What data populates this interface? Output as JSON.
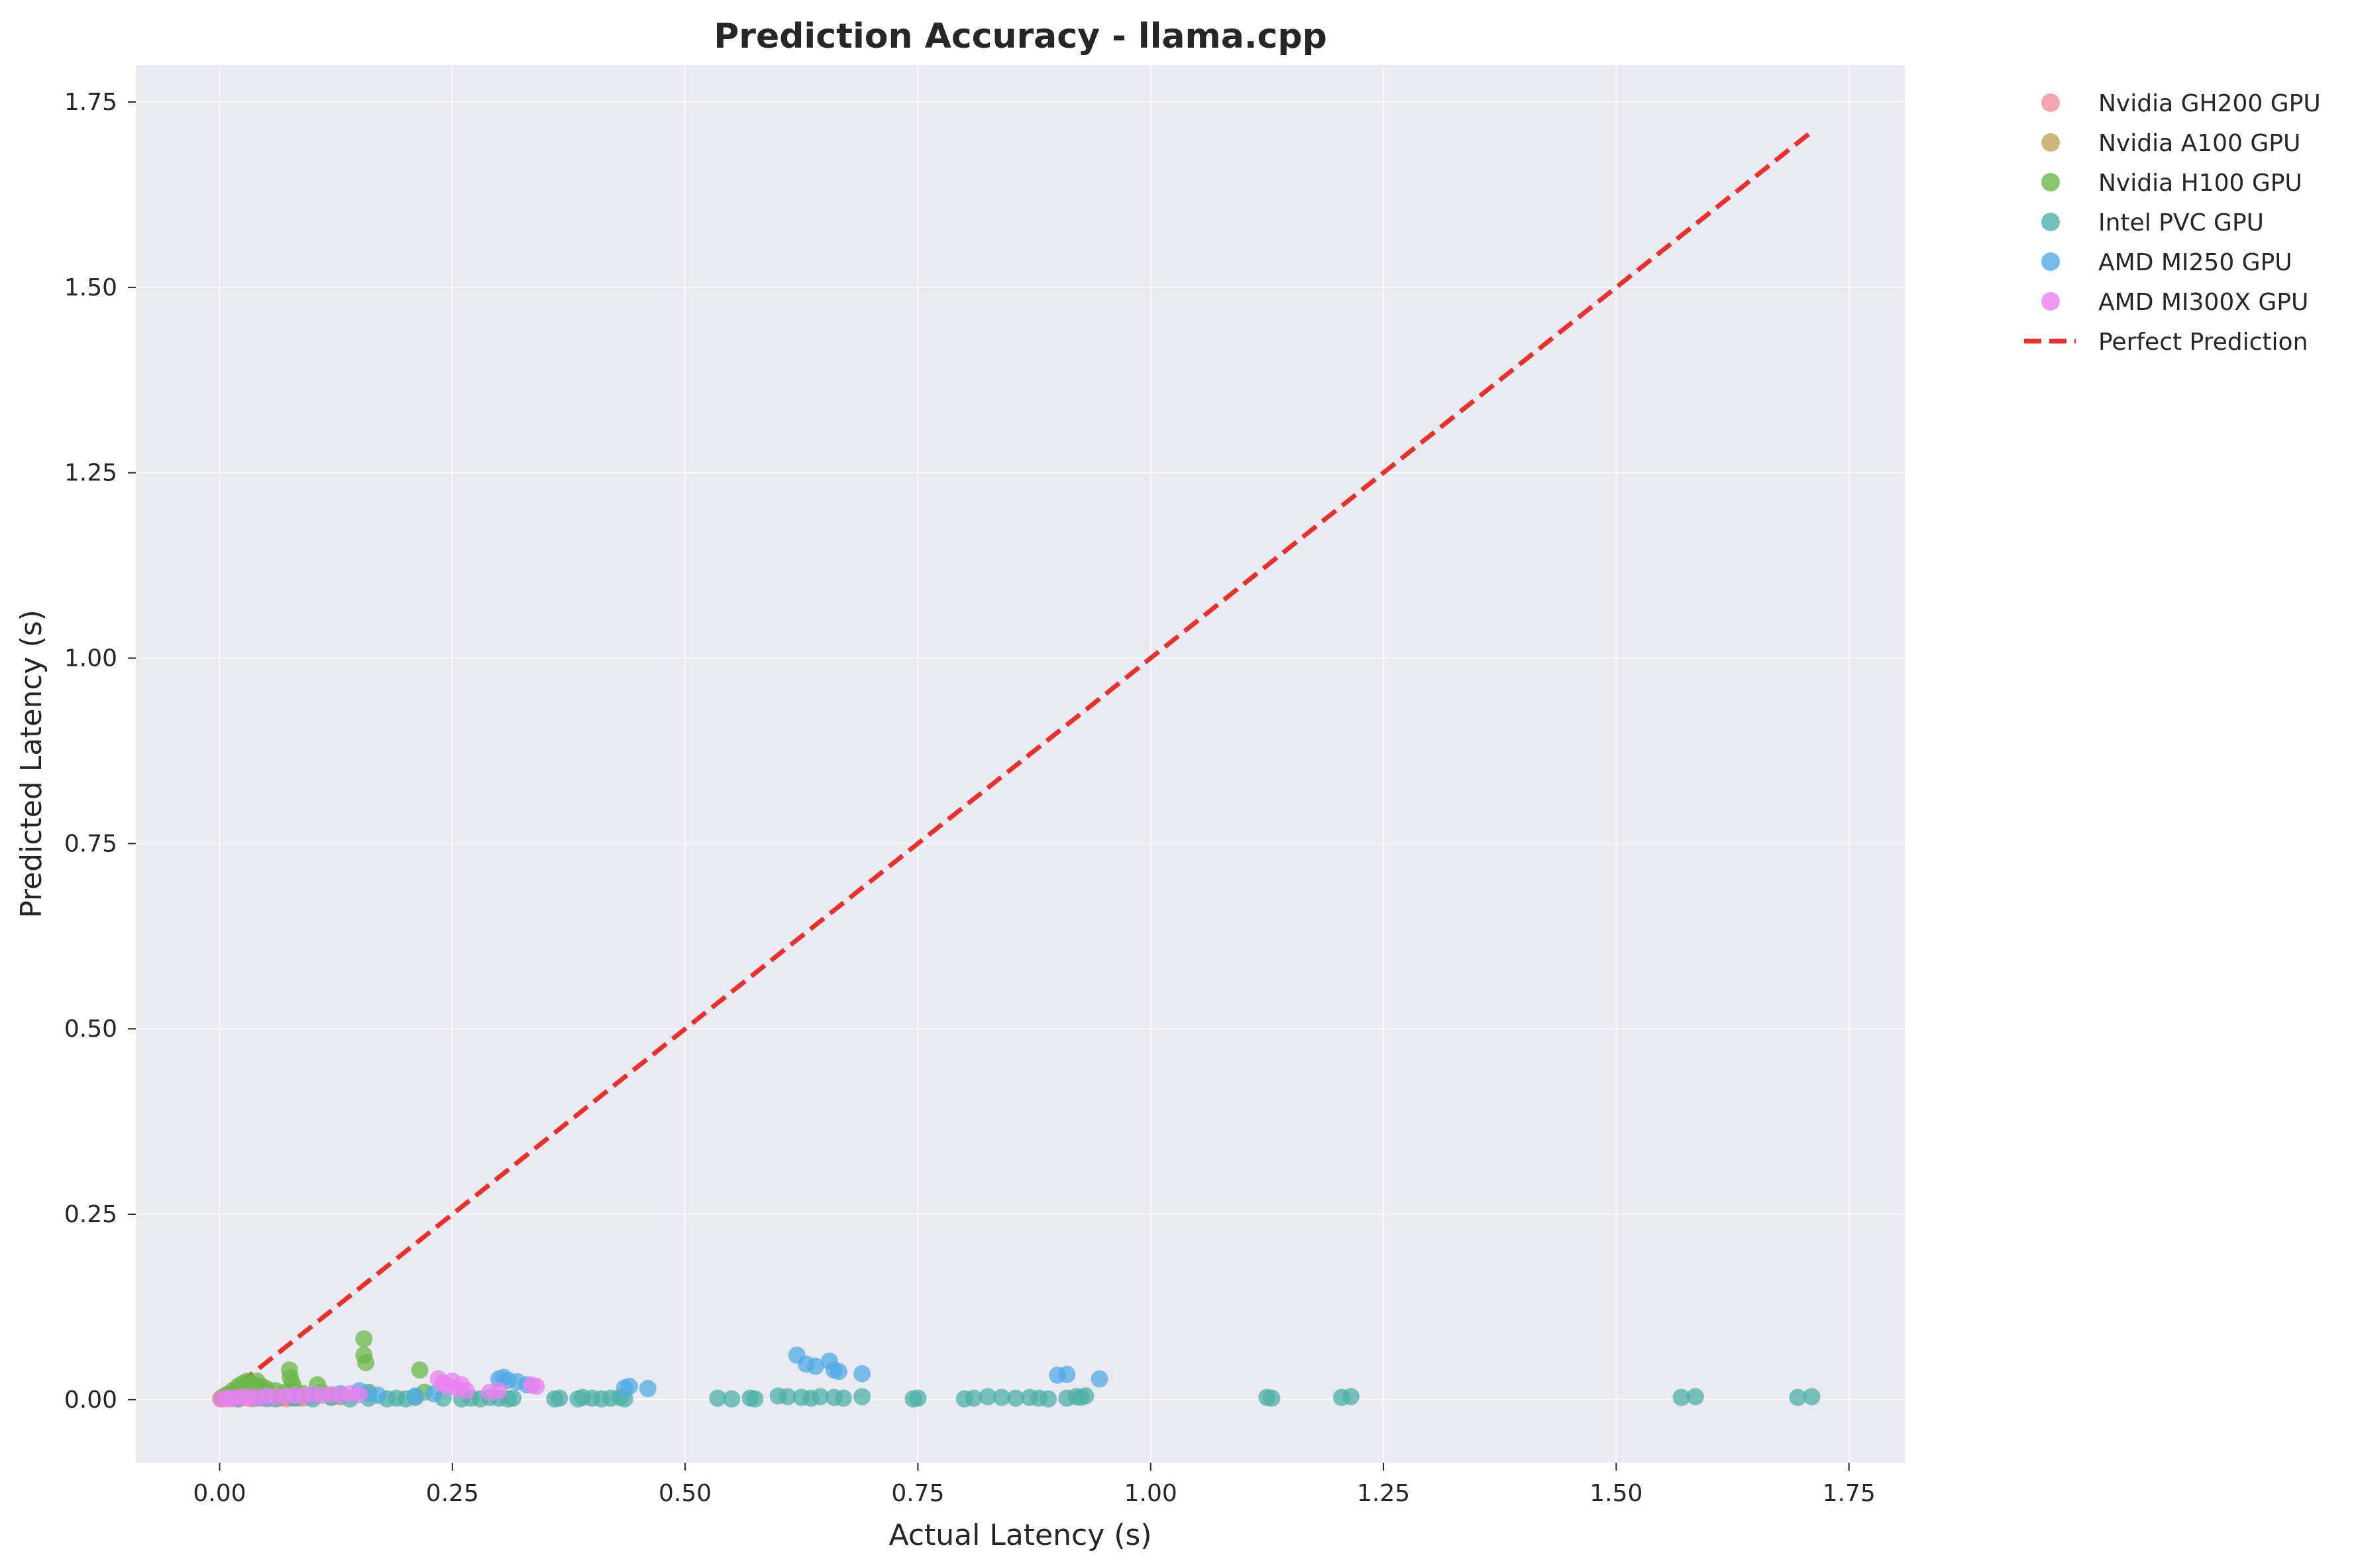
{
  "chart_data": {
    "type": "scatter",
    "title": "Prediction Accuracy - llama.cpp",
    "xlabel": "Actual Latency (s)",
    "ylabel": "Predicted Latency (s)",
    "xlim": [
      -0.09,
      1.81
    ],
    "ylim": [
      -0.085,
      1.8
    ],
    "xticks": [
      0.0,
      0.25,
      0.5,
      0.75,
      1.0,
      1.25,
      1.5,
      1.75
    ],
    "xtick_labels": [
      "0.00",
      "0.25",
      "0.50",
      "0.75",
      "1.00",
      "1.25",
      "1.50",
      "1.75"
    ],
    "yticks": [
      0.0,
      0.25,
      0.5,
      0.75,
      1.0,
      1.25,
      1.5,
      1.75
    ],
    "ytick_labels": [
      "0.00",
      "0.25",
      "0.50",
      "0.75",
      "1.00",
      "1.25",
      "1.50",
      "1.75"
    ],
    "grid": true,
    "legend_position": "outside-top-right",
    "background_color": "#eaeaf2",
    "series": [
      {
        "name": "Nvidia GH200 GPU",
        "color": "#f38ba0",
        "points": [
          [
            0.001,
            0.001
          ],
          [
            0.003,
            0.002
          ],
          [
            0.006,
            0.001
          ],
          [
            0.009,
            0.003
          ],
          [
            0.012,
            0.001
          ],
          [
            0.016,
            0.002
          ],
          [
            0.02,
            0.001
          ],
          [
            0.025,
            0.003
          ],
          [
            0.03,
            0.002
          ],
          [
            0.035,
            0.001
          ],
          [
            0.04,
            0.004
          ],
          [
            0.046,
            0.002
          ],
          [
            0.052,
            0.001
          ],
          [
            0.058,
            0.003
          ],
          [
            0.065,
            0.002
          ],
          [
            0.072,
            0.001
          ],
          [
            0.08,
            0.003
          ],
          [
            0.09,
            0.002
          ]
        ]
      },
      {
        "name": "Nvidia A100 GPU",
        "color": "#c0a45b",
        "points": [
          [
            0.002,
            0.002
          ],
          [
            0.005,
            0.004
          ],
          [
            0.01,
            0.006
          ],
          [
            0.015,
            0.009
          ],
          [
            0.02,
            0.012
          ],
          [
            0.026,
            0.015
          ],
          [
            0.032,
            0.018
          ],
          [
            0.038,
            0.02
          ],
          [
            0.044,
            0.015
          ],
          [
            0.05,
            0.01
          ],
          [
            0.058,
            0.006
          ],
          [
            0.066,
            0.004
          ],
          [
            0.075,
            0.003
          ],
          [
            0.085,
            0.002
          ]
        ]
      },
      {
        "name": "Nvidia H100 GPU",
        "color": "#6ab848",
        "points": [
          [
            0.003,
            0.003
          ],
          [
            0.008,
            0.007
          ],
          [
            0.014,
            0.012
          ],
          [
            0.02,
            0.018
          ],
          [
            0.025,
            0.022
          ],
          [
            0.03,
            0.025
          ],
          [
            0.035,
            0.02
          ],
          [
            0.04,
            0.025
          ],
          [
            0.045,
            0.018
          ],
          [
            0.05,
            0.015
          ],
          [
            0.06,
            0.012
          ],
          [
            0.07,
            0.01
          ],
          [
            0.075,
            0.04
          ],
          [
            0.076,
            0.03
          ],
          [
            0.078,
            0.022
          ],
          [
            0.08,
            0.015
          ],
          [
            0.09,
            0.008
          ],
          [
            0.1,
            0.006
          ],
          [
            0.105,
            0.02
          ],
          [
            0.11,
            0.01
          ],
          [
            0.12,
            0.005
          ],
          [
            0.13,
            0.004
          ],
          [
            0.155,
            0.082
          ],
          [
            0.155,
            0.06
          ],
          [
            0.157,
            0.05
          ],
          [
            0.16,
            0.01
          ],
          [
            0.215,
            0.04
          ],
          [
            0.22,
            0.01
          ]
        ]
      },
      {
        "name": "Intel PVC GPU",
        "color": "#4fb0a5",
        "points": [
          [
            0.02,
            0.001
          ],
          [
            0.04,
            0.002
          ],
          [
            0.06,
            0.001
          ],
          [
            0.08,
            0.002
          ],
          [
            0.1,
            0.001
          ],
          [
            0.12,
            0.003
          ],
          [
            0.14,
            0.001
          ],
          [
            0.16,
            0.002
          ],
          [
            0.18,
            0.001
          ],
          [
            0.19,
            0.002
          ],
          [
            0.2,
            0.001
          ],
          [
            0.21,
            0.003
          ],
          [
            0.24,
            0.002
          ],
          [
            0.26,
            0.001
          ],
          [
            0.27,
            0.002
          ],
          [
            0.28,
            0.001
          ],
          [
            0.29,
            0.003
          ],
          [
            0.3,
            0.002
          ],
          [
            0.31,
            0.001
          ],
          [
            0.315,
            0.002
          ],
          [
            0.36,
            0.001
          ],
          [
            0.365,
            0.002
          ],
          [
            0.385,
            0.001
          ],
          [
            0.39,
            0.003
          ],
          [
            0.4,
            0.002
          ],
          [
            0.41,
            0.001
          ],
          [
            0.42,
            0.002
          ],
          [
            0.43,
            0.003
          ],
          [
            0.435,
            0.001
          ],
          [
            0.535,
            0.002
          ],
          [
            0.55,
            0.001
          ],
          [
            0.57,
            0.002
          ],
          [
            0.575,
            0.001
          ],
          [
            0.6,
            0.005
          ],
          [
            0.61,
            0.004
          ],
          [
            0.625,
            0.003
          ],
          [
            0.635,
            0.002
          ],
          [
            0.645,
            0.004
          ],
          [
            0.66,
            0.003
          ],
          [
            0.67,
            0.002
          ],
          [
            0.69,
            0.004
          ],
          [
            0.745,
            0.001
          ],
          [
            0.75,
            0.002
          ],
          [
            0.8,
            0.001
          ],
          [
            0.81,
            0.002
          ],
          [
            0.825,
            0.004
          ],
          [
            0.84,
            0.003
          ],
          [
            0.855,
            0.002
          ],
          [
            0.87,
            0.003
          ],
          [
            0.88,
            0.002
          ],
          [
            0.89,
            0.001
          ],
          [
            0.91,
            0.002
          ],
          [
            0.92,
            0.004
          ],
          [
            0.925,
            0.003
          ],
          [
            0.93,
            0.005
          ],
          [
            1.125,
            0.003
          ],
          [
            1.13,
            0.002
          ],
          [
            1.205,
            0.003
          ],
          [
            1.215,
            0.004
          ],
          [
            1.57,
            0.003
          ],
          [
            1.585,
            0.004
          ],
          [
            1.695,
            0.003
          ],
          [
            1.71,
            0.004
          ]
        ]
      },
      {
        "name": "AMD MI250 GPU",
        "color": "#52a9e4",
        "points": [
          [
            0.05,
            0.002
          ],
          [
            0.08,
            0.004
          ],
          [
            0.1,
            0.006
          ],
          [
            0.13,
            0.008
          ],
          [
            0.15,
            0.012
          ],
          [
            0.16,
            0.008
          ],
          [
            0.17,
            0.006
          ],
          [
            0.21,
            0.005
          ],
          [
            0.23,
            0.008
          ],
          [
            0.3,
            0.028
          ],
          [
            0.305,
            0.03
          ],
          [
            0.31,
            0.026
          ],
          [
            0.32,
            0.024
          ],
          [
            0.33,
            0.02
          ],
          [
            0.435,
            0.016
          ],
          [
            0.44,
            0.018
          ],
          [
            0.46,
            0.015
          ],
          [
            0.62,
            0.06
          ],
          [
            0.63,
            0.048
          ],
          [
            0.64,
            0.045
          ],
          [
            0.655,
            0.052
          ],
          [
            0.66,
            0.04
          ],
          [
            0.665,
            0.038
          ],
          [
            0.69,
            0.035
          ],
          [
            0.9,
            0.033
          ],
          [
            0.91,
            0.034
          ],
          [
            0.945,
            0.028
          ]
        ]
      },
      {
        "name": "AMD MI300X GPU",
        "color": "#e880ef",
        "points": [
          [
            0.002,
            0.001
          ],
          [
            0.008,
            0.002
          ],
          [
            0.015,
            0.002
          ],
          [
            0.022,
            0.003
          ],
          [
            0.03,
            0.004
          ],
          [
            0.04,
            0.003
          ],
          [
            0.05,
            0.005
          ],
          [
            0.06,
            0.004
          ],
          [
            0.07,
            0.005
          ],
          [
            0.08,
            0.006
          ],
          [
            0.09,
            0.005
          ],
          [
            0.1,
            0.007
          ],
          [
            0.11,
            0.006
          ],
          [
            0.12,
            0.007
          ],
          [
            0.13,
            0.006
          ],
          [
            0.14,
            0.008
          ],
          [
            0.15,
            0.007
          ],
          [
            0.235,
            0.028
          ],
          [
            0.24,
            0.022
          ],
          [
            0.245,
            0.018
          ],
          [
            0.25,
            0.025
          ],
          [
            0.255,
            0.015
          ],
          [
            0.26,
            0.02
          ],
          [
            0.265,
            0.012
          ],
          [
            0.29,
            0.01
          ],
          [
            0.3,
            0.012
          ],
          [
            0.335,
            0.02
          ],
          [
            0.34,
            0.018
          ]
        ]
      }
    ],
    "reference_line": {
      "name": "Perfect Prediction",
      "color": "#e8312c",
      "style": "dashed",
      "points": [
        [
          0.0,
          0.0
        ],
        [
          1.71,
          1.71
        ]
      ]
    }
  }
}
